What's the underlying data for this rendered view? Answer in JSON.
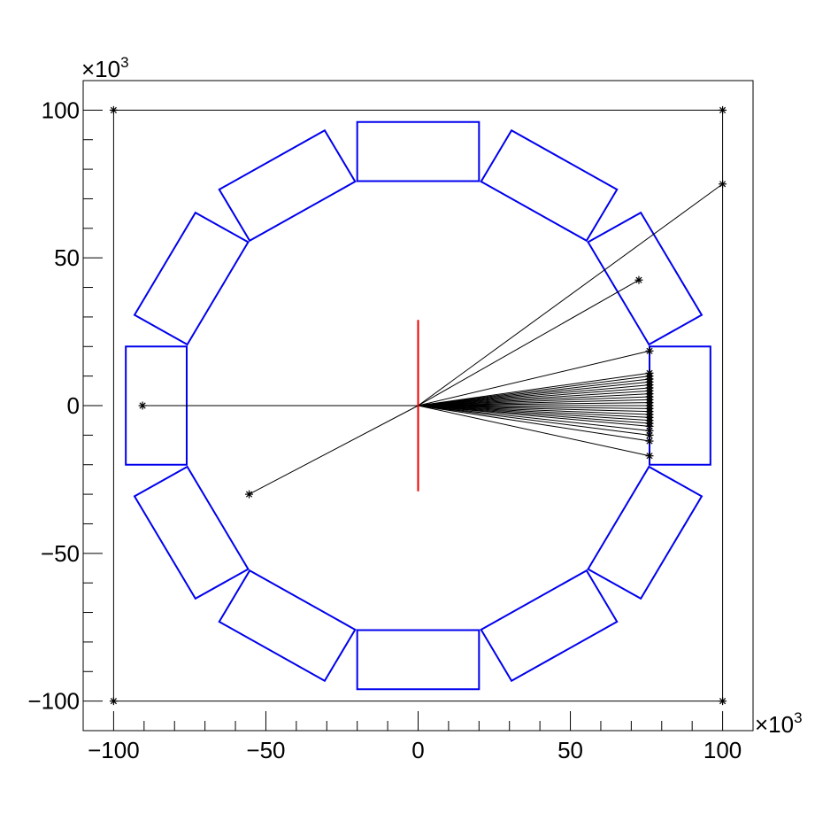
{
  "chart_data": {
    "type": "scatter",
    "title": "",
    "xlabel": "",
    "ylabel": "",
    "xlim": [
      -110,
      110
    ],
    "ylim": [
      -110,
      110
    ],
    "x_multiplier_label": "×10",
    "y_multiplier_label": "×10",
    "multiplier_exponent": "3",
    "x_ticks": [
      -100,
      -50,
      0,
      50,
      100
    ],
    "y_ticks": [
      -100,
      -50,
      0,
      50,
      100
    ],
    "x_tick_labels": [
      "−100",
      "−50",
      "0",
      "50",
      "100"
    ],
    "y_tick_labels": [
      "−100",
      "−50",
      "0",
      "50",
      "100"
    ],
    "minor_tick_step": 10,
    "grid": false,
    "colors": {
      "detector": "#0000ee",
      "source": "#ee0000",
      "track": "#000000"
    },
    "world_box": {
      "x": [
        -100,
        100
      ],
      "y": [
        -100,
        100
      ]
    },
    "corner_markers": [
      [
        -100,
        100
      ],
      [
        100,
        100
      ],
      [
        -100,
        -100
      ],
      [
        100,
        -100
      ]
    ],
    "source_line": {
      "x": 0,
      "y": [
        -29,
        29
      ]
    },
    "detector_modules": {
      "count": 12,
      "inner_radius": 76,
      "outer_radius": 96,
      "half_width": 20,
      "first_angle_deg": 0,
      "step_deg": 30
    },
    "tracks": [
      {
        "x": 100,
        "y": 75
      },
      {
        "x": 72.5,
        "y": 42.5
      },
      {
        "x": 76,
        "y": 18.5
      },
      {
        "x": -90.5,
        "y": 0
      },
      {
        "x": -55.5,
        "y": -30
      },
      {
        "x": 76,
        "y": -17
      },
      {
        "x": 76,
        "y": -12
      },
      {
        "x": 76,
        "y": -10
      },
      {
        "x": 76,
        "y": -8.5
      },
      {
        "x": 76,
        "y": -7
      },
      {
        "x": 76,
        "y": -6
      },
      {
        "x": 76,
        "y": -5
      },
      {
        "x": 76,
        "y": -4
      },
      {
        "x": 76,
        "y": -3
      },
      {
        "x": 76,
        "y": -2
      },
      {
        "x": 76,
        "y": -1
      },
      {
        "x": 76,
        "y": 0
      },
      {
        "x": 76,
        "y": 1
      },
      {
        "x": 76,
        "y": 2
      },
      {
        "x": 76,
        "y": 3
      },
      {
        "x": 76,
        "y": 4
      },
      {
        "x": 76,
        "y": 5
      },
      {
        "x": 76,
        "y": 6
      },
      {
        "x": 76,
        "y": 7
      },
      {
        "x": 76,
        "y": 8
      },
      {
        "x": 76,
        "y": 9
      },
      {
        "x": 76,
        "y": 10
      },
      {
        "x": 76,
        "y": 11
      }
    ]
  }
}
